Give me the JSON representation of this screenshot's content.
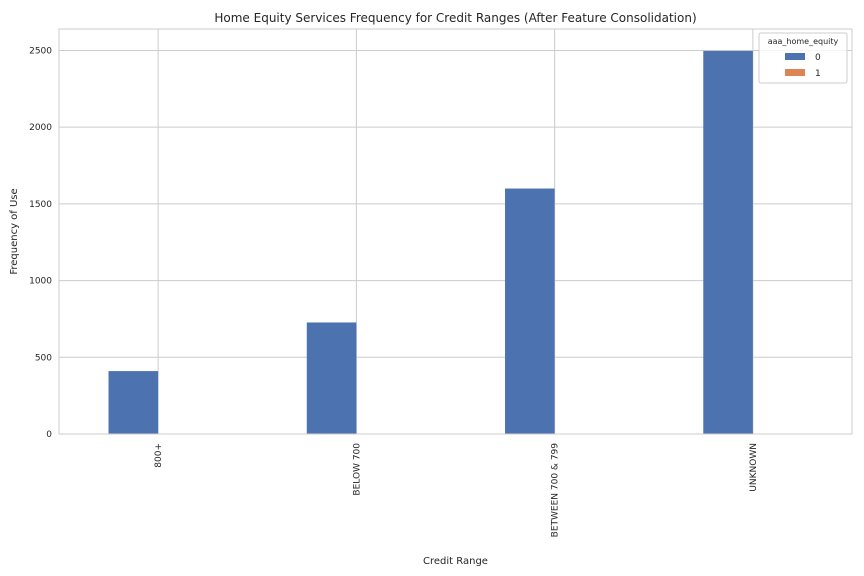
{
  "chart_data": {
    "type": "bar",
    "title": "Home Equity Services Frequency for Credit Ranges (After Feature Consolidation)",
    "xlabel": "Credit Range",
    "ylabel": "Frequency of Use",
    "categories": [
      "800+",
      "BELOW 700",
      "BETWEEN 700 & 799",
      "UNKNOWN"
    ],
    "series": [
      {
        "name": "0",
        "values": [
          410,
          727,
          1600,
          2497
        ],
        "color": "#4c72b0"
      },
      {
        "name": "1",
        "values": [
          0,
          0,
          0,
          0
        ],
        "color": "#dd8452"
      }
    ],
    "ylim": [
      0,
      2640
    ],
    "yticks": [
      0,
      500,
      1000,
      1500,
      2000,
      2500
    ],
    "grid": true,
    "legend": {
      "title": "aaa_home_equity",
      "placement": "top-right"
    }
  }
}
